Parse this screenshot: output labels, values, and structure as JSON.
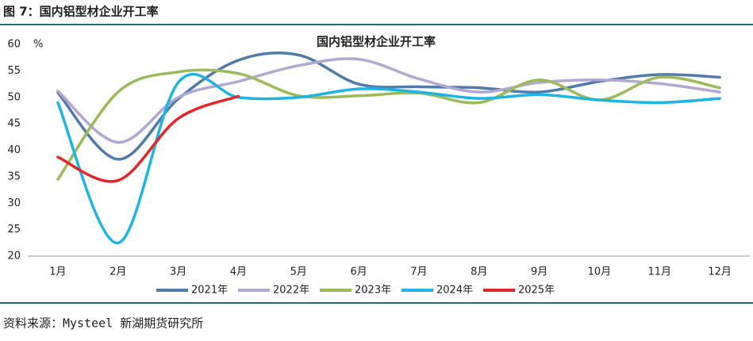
{
  "header": "图 7：国内铝型材企业开工率",
  "source": "资料来源：Mysteel 新湖期货研究所",
  "chart_data": {
    "type": "line",
    "title": "国内铝型材企业开工率",
    "y_label": "%",
    "categories": [
      "1月",
      "2月",
      "3月",
      "4月",
      "5月",
      "6月",
      "7月",
      "8月",
      "9月",
      "10月",
      "11月",
      "12月"
    ],
    "series": [
      {
        "name": "2021年",
        "color": "#4f7cac",
        "values": [
          50.9,
          38.3,
          49.7,
          57,
          58,
          52.5,
          52,
          51.8,
          51,
          53,
          54.3,
          53.8
        ]
      },
      {
        "name": "2022年",
        "color": "#b3a8d4",
        "values": [
          51.2,
          41.5,
          50,
          53,
          56,
          57.2,
          53.5,
          51,
          52.8,
          53.3,
          52.6,
          51
        ]
      },
      {
        "name": "2023年",
        "color": "#9bbb59",
        "values": [
          34.5,
          51,
          54.8,
          54.5,
          50.3,
          50.3,
          50.8,
          49,
          53.3,
          49.5,
          53.8,
          51.8
        ]
      },
      {
        "name": "2024年",
        "color": "#1fb4e6",
        "values": [
          49,
          22.5,
          52.8,
          50,
          50,
          51.6,
          51,
          49.8,
          50.5,
          49.5,
          49,
          49.8
        ]
      },
      {
        "name": "2025年",
        "color": "#e8262a",
        "values": [
          38.7,
          34.3,
          46,
          50.2,
          null,
          null,
          null,
          null,
          null,
          null,
          null,
          null
        ]
      }
    ],
    "ylim": [
      20,
      60
    ],
    "yticks": [
      20,
      25,
      30,
      35,
      40,
      45,
      50,
      55,
      60
    ],
    "grid": false,
    "legend": "bottom"
  }
}
